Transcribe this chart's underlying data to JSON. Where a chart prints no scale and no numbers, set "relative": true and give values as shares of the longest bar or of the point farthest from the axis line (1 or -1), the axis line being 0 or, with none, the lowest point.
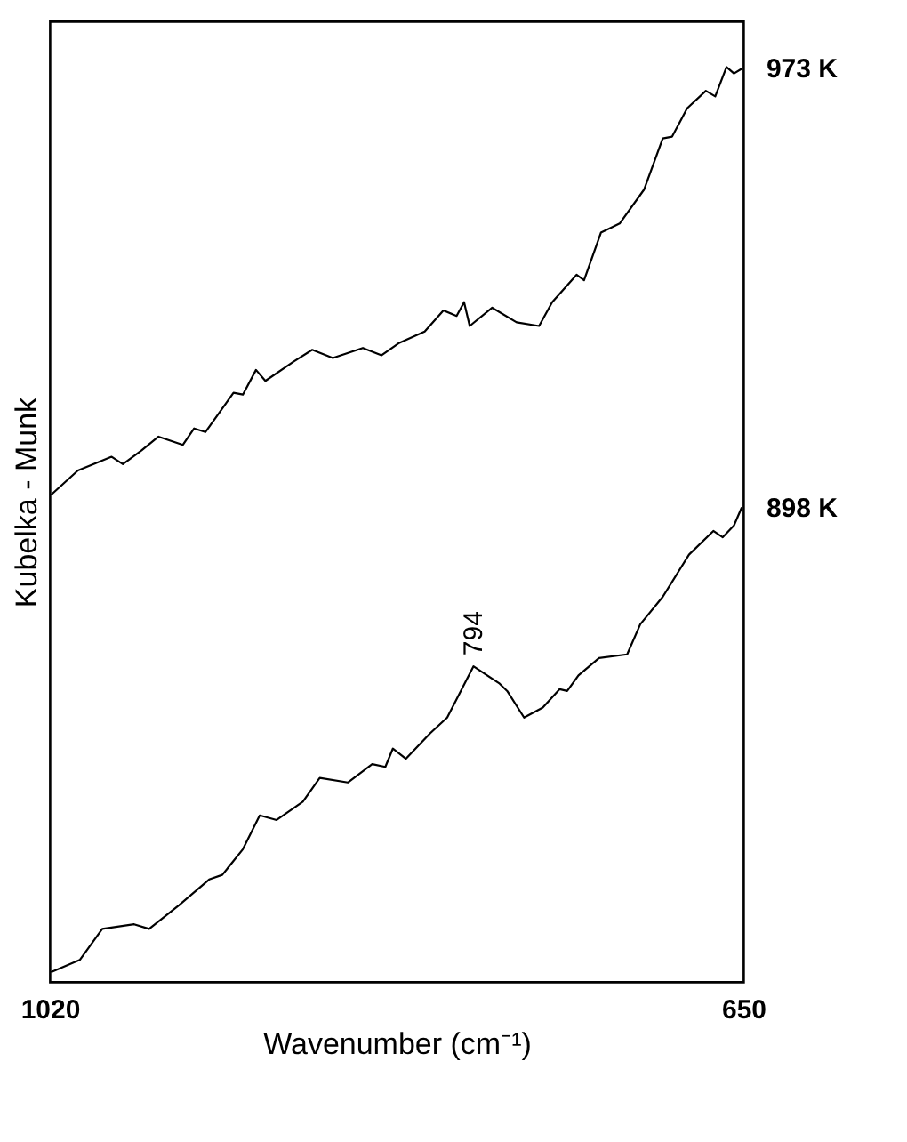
{
  "chart_data": {
    "type": "line",
    "relative": true,
    "xlabel": "Wavenumber (cm⁻¹)",
    "ylabel": "Kubelka - Munk",
    "xlim": [
      1020,
      650
    ],
    "xticks": [
      1020,
      650
    ],
    "legend": false,
    "annotations": [
      {
        "text": "794",
        "x": 794,
        "y": 0.345
      }
    ],
    "series": [
      {
        "name": "973 K",
        "color": "#000000",
        "x": [
          1019,
          1005,
          987,
          981,
          971,
          962,
          949,
          943,
          937,
          922,
          917,
          910,
          905,
          890,
          880,
          869,
          853,
          843,
          834,
          820,
          810,
          803,
          799,
          796,
          784,
          771,
          759,
          752,
          739,
          735,
          726,
          716,
          703,
          693,
          688,
          680,
          670,
          665,
          659,
          655,
          651
        ],
        "values": [
          0.533,
          0.559,
          0.574,
          0.566,
          0.581,
          0.596,
          0.587,
          0.605,
          0.601,
          0.644,
          0.642,
          0.669,
          0.657,
          0.678,
          0.691,
          0.682,
          0.693,
          0.685,
          0.698,
          0.711,
          0.734,
          0.728,
          0.743,
          0.717,
          0.737,
          0.721,
          0.717,
          0.743,
          0.773,
          0.767,
          0.819,
          0.829,
          0.866,
          0.922,
          0.924,
          0.955,
          0.974,
          0.968,
          1,
          0.993,
          0.998
        ]
      },
      {
        "name": "898 K",
        "color": "#000000",
        "x": [
          1019,
          1004,
          992,
          975,
          967,
          951,
          935,
          928,
          917,
          908,
          899,
          885,
          876,
          861,
          848,
          841,
          837,
          830,
          817,
          808,
          794,
          780,
          776,
          767,
          757,
          748,
          744,
          738,
          727,
          712,
          705,
          693,
          679,
          666,
          661,
          655,
          651
        ],
        "values": [
          0.011,
          0.024,
          0.058,
          0.063,
          0.058,
          0.084,
          0.112,
          0.117,
          0.145,
          0.182,
          0.177,
          0.197,
          0.223,
          0.218,
          0.238,
          0.235,
          0.255,
          0.244,
          0.272,
          0.289,
          0.345,
          0.326,
          0.318,
          0.289,
          0.3,
          0.32,
          0.318,
          0.335,
          0.354,
          0.358,
          0.391,
          0.421,
          0.467,
          0.493,
          0.486,
          0.499,
          0.518
        ]
      }
    ]
  }
}
